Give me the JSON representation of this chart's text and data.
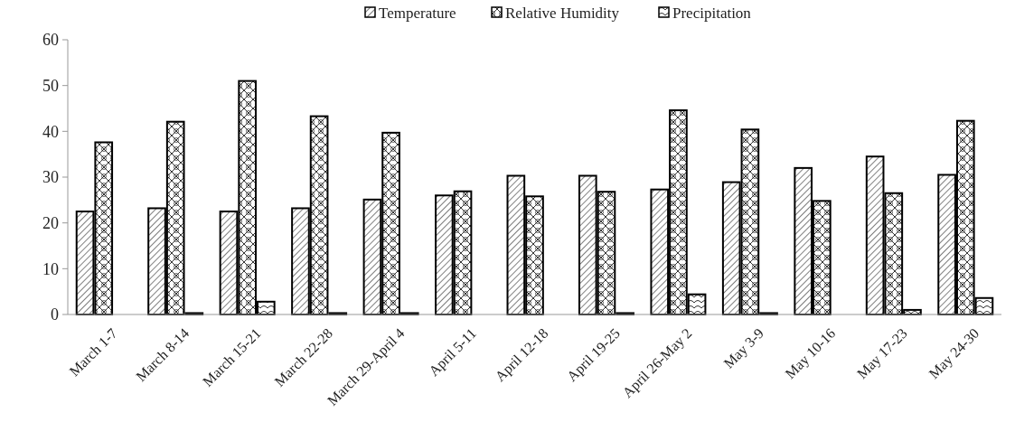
{
  "chart_data": {
    "type": "bar",
    "categories": [
      "March 1-7",
      "March 8-14",
      "March 15-21",
      "March 22-28",
      "March 29-April 4",
      "April 5-11",
      "April 12-18",
      "April 19-25",
      "April 26-May 2",
      "May 3-9",
      "May 10-16",
      "May 17-23",
      "May 24-30"
    ],
    "series": [
      {
        "name": "Temperature",
        "color": "#000000",
        "values": [
          22.5,
          23.2,
          22.5,
          23.2,
          25.1,
          26,
          30.3,
          30.3,
          27.3,
          28.9,
          32,
          34.5,
          30.5
        ]
      },
      {
        "name": "Relative Humidity",
        "color": "#000000",
        "values": [
          37.6,
          42.1,
          51,
          43.3,
          39.7,
          26.9,
          25.8,
          26.8,
          44.6,
          40.4,
          24.8,
          26.5,
          42.3
        ]
      },
      {
        "name": "Precipitation",
        "color": "#000000",
        "values": [
          null,
          0.3,
          2.8,
          0.3,
          0.3,
          null,
          null,
          0.3,
          4.4,
          0.3,
          null,
          1,
          3.6
        ]
      }
    ],
    "ylim": [
      0,
      60
    ],
    "yticks": [
      0,
      10,
      20,
      30,
      40,
      50,
      60
    ],
    "grid": false,
    "legend": "top"
  }
}
